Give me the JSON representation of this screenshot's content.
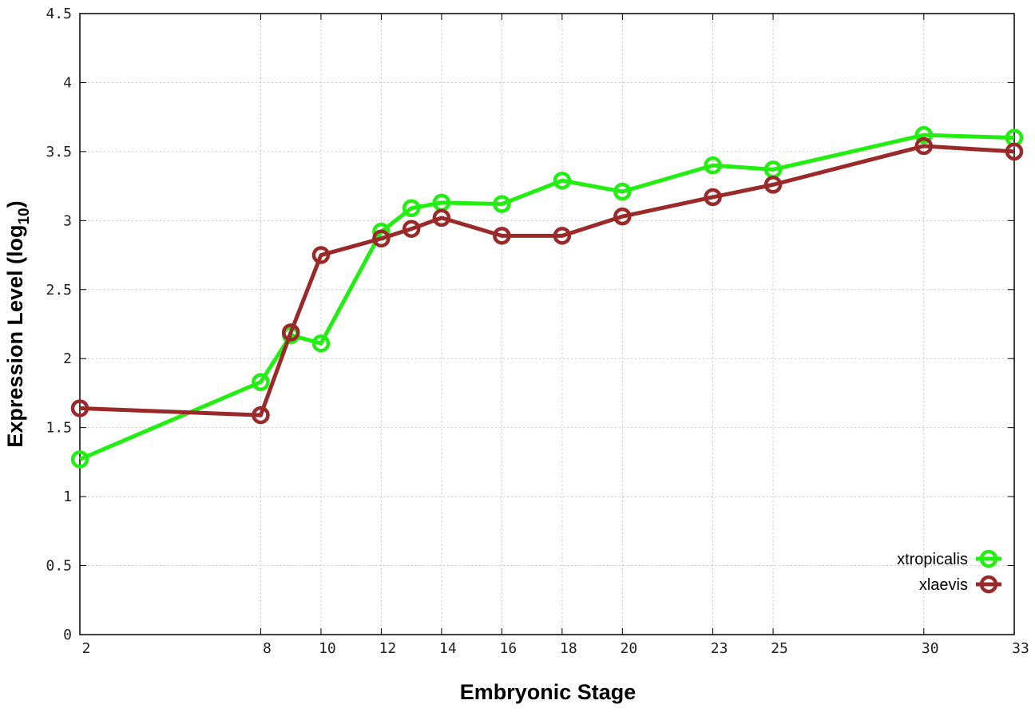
{
  "chart_data": {
    "type": "line",
    "title": "",
    "xlabel": "Embryonic Stage",
    "ylabel_main": "Expression Level (log",
    "ylabel_sub": "10",
    "ylabel_close": ")",
    "x_ticks": [
      "2",
      "8",
      "10",
      "12",
      "14",
      "16",
      "18",
      "20",
      "23",
      "25",
      "30",
      "33"
    ],
    "y_ticks": [
      "0",
      "0.5",
      "1",
      "1.5",
      "2",
      "2.5",
      "3",
      "3.5",
      "4",
      "4.5"
    ],
    "ylim": [
      0,
      4.5
    ],
    "grid": true,
    "legend_position": "bottom-right",
    "marker": "open-circle",
    "series": [
      {
        "name": "xtropicalis",
        "color": "#22ee11",
        "x": [
          2,
          8,
          9,
          10,
          12,
          13,
          14,
          16,
          18,
          20,
          23,
          25,
          30,
          33
        ],
        "values": [
          1.27,
          1.83,
          2.17,
          2.11,
          2.92,
          3.09,
          3.13,
          3.12,
          3.29,
          3.21,
          3.4,
          3.37,
          3.62,
          3.6
        ]
      },
      {
        "name": "xlaevis",
        "color": "#9a2a2a",
        "x": [
          2,
          8,
          9,
          10,
          12,
          13,
          14,
          16,
          18,
          20,
          23,
          25,
          30,
          33
        ],
        "values": [
          1.64,
          1.59,
          2.19,
          2.75,
          2.87,
          2.94,
          3.02,
          2.89,
          2.89,
          3.03,
          3.17,
          3.26,
          3.54,
          3.5
        ]
      }
    ]
  }
}
